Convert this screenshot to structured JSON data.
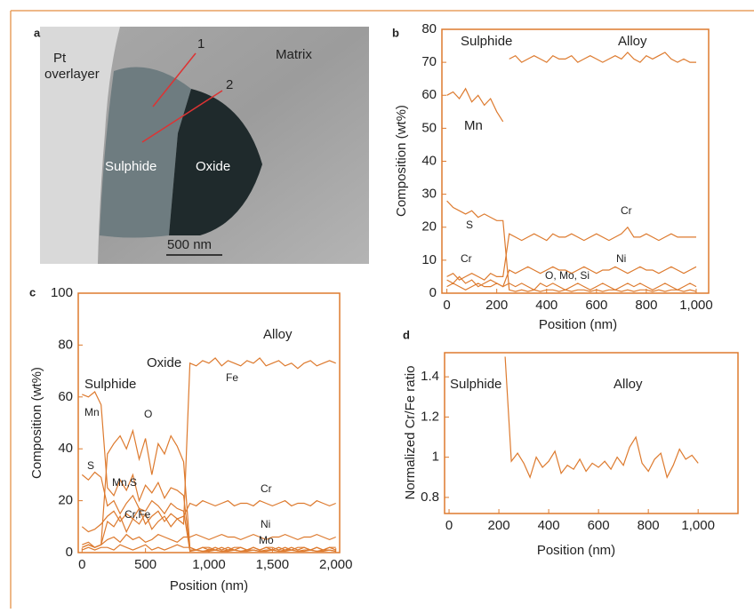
{
  "micrograph": {
    "label": "a",
    "pt": "Pt",
    "overlayer": "overlayer",
    "matrix": "Matrix",
    "line1": "1",
    "line2": "2",
    "sulphide": "Sulphide",
    "oxide": "Oxide",
    "scale": "500 nm"
  },
  "chart_data": [
    {
      "type": "line",
      "label": "b",
      "xlabel": "Position (nm)",
      "ylabel": "Composition (wt%)",
      "xlim": [
        -20,
        1050
      ],
      "ylim": [
        0,
        80
      ],
      "xticks": [
        0,
        200,
        400,
        600,
        800,
        {
          "value": 1000,
          "label": "1,000"
        }
      ],
      "yticks": [
        0,
        10,
        20,
        30,
        40,
        50,
        60,
        70,
        80
      ],
      "annotations": [
        "Sulphide",
        "Alloy",
        "Mn",
        "S",
        "Cr",
        "Cr",
        "Ni",
        "O, Mo, Si"
      ],
      "x": [
        0,
        25,
        50,
        75,
        100,
        125,
        150,
        175,
        200,
        225,
        250,
        275,
        300,
        325,
        350,
        375,
        400,
        425,
        450,
        475,
        500,
        525,
        550,
        575,
        600,
        625,
        650,
        675,
        700,
        725,
        750,
        775,
        800,
        825,
        850,
        875,
        900,
        925,
        950,
        975,
        1000
      ],
      "series": [
        {
          "color": "#dd7a2e",
          "values": [
            60,
            61,
            59,
            62,
            58,
            60,
            57,
            59,
            55,
            52,
            null,
            null,
            null,
            null,
            null,
            null,
            null,
            null,
            null,
            null,
            null,
            null,
            null,
            null,
            null,
            null,
            null,
            null,
            null,
            null,
            null,
            null,
            null,
            null,
            null,
            null,
            null,
            null,
            null,
            null,
            null
          ]
        },
        {
          "color": "#dd7a2e",
          "values": [
            null,
            null,
            null,
            null,
            null,
            null,
            null,
            null,
            null,
            null,
            71,
            72,
            70,
            71,
            72,
            71,
            70,
            72,
            71,
            71,
            72,
            70,
            71,
            72,
            71,
            70,
            71,
            72,
            71,
            73,
            71,
            70,
            72,
            71,
            72,
            73,
            71,
            70,
            71,
            70,
            70
          ]
        },
        {
          "color": "#dd7a2e",
          "values": [
            28,
            26,
            25,
            24,
            25,
            23,
            24,
            23,
            22,
            22,
            1,
            0.5,
            1,
            0.5,
            1,
            0.5,
            1,
            1,
            0.5,
            1,
            0.5,
            1,
            1,
            0.5,
            1,
            0.5,
            1,
            1,
            0.5,
            1,
            0.5,
            1,
            1,
            0.5,
            1,
            0.5,
            1,
            1,
            0.5,
            1,
            0.5
          ]
        },
        {
          "color": "#dd7a2e",
          "values": [
            5,
            6,
            4,
            5,
            6,
            5,
            4,
            6,
            5,
            5,
            18,
            17,
            16,
            17,
            18,
            17,
            16,
            18,
            17,
            17,
            18,
            17,
            16,
            17,
            18,
            17,
            16,
            17,
            18,
            20,
            17,
            17,
            18,
            17,
            16,
            17,
            18,
            17,
            17,
            17,
            17
          ]
        },
        {
          "color": "#dd7a2e",
          "values": [
            2,
            3,
            2,
            1,
            2,
            3,
            2,
            2,
            3,
            2,
            7,
            6,
            7,
            8,
            7,
            6,
            7,
            8,
            7,
            7,
            6,
            7,
            8,
            7,
            6,
            7,
            7,
            8,
            7,
            6,
            7,
            8,
            7,
            7,
            6,
            7,
            8,
            7,
            6,
            7,
            8
          ]
        },
        {
          "color": "#dd7a2e",
          "values": [
            4,
            3,
            5,
            3,
            4,
            2,
            3,
            4,
            3,
            2,
            3,
            2,
            3,
            2,
            1,
            3,
            2,
            3,
            2,
            1,
            2,
            3,
            2,
            1,
            2,
            3,
            2,
            1,
            2,
            3,
            2,
            3,
            2,
            1,
            2,
            3,
            2,
            1,
            2,
            3,
            2
          ]
        }
      ]
    },
    {
      "type": "line",
      "label": "c",
      "xlabel": "Position (nm)",
      "ylabel": "Composition (wt%)",
      "xlim": [
        -30,
        2030
      ],
      "ylim": [
        0,
        100
      ],
      "xticks": [
        0,
        500,
        {
          "value": 1000,
          "label": "1,000"
        },
        {
          "value": 1500,
          "label": "1,500"
        },
        {
          "value": 2000,
          "label": "2,000"
        }
      ],
      "yticks": [
        0,
        20,
        40,
        60,
        80,
        100
      ],
      "annotations": [
        "Sulphide",
        "Oxide",
        "Alloy",
        "Mn",
        "S",
        "O",
        "Mn,S",
        "Cr,Fe",
        "Fe",
        "Cr",
        "Ni",
        "Mo"
      ],
      "x": [
        0,
        50,
        100,
        150,
        200,
        250,
        300,
        350,
        400,
        450,
        500,
        550,
        600,
        650,
        700,
        750,
        800,
        850,
        900,
        950,
        1000,
        1050,
        1100,
        1150,
        1200,
        1250,
        1300,
        1350,
        1400,
        1450,
        1500,
        1550,
        1600,
        1650,
        1700,
        1750,
        1800,
        1850,
        1900,
        1950,
        2000
      ],
      "series": [
        {
          "color": "#dd7a2e",
          "values": [
            2,
            3,
            2,
            3,
            12,
            10,
            14,
            8,
            13,
            11,
            15,
            9,
            12,
            14,
            10,
            13,
            11,
            73,
            72,
            74,
            73,
            75,
            72,
            74,
            73,
            72,
            74,
            73,
            75,
            72,
            73,
            74,
            72,
            73,
            71,
            73,
            74,
            72,
            73,
            74,
            73
          ]
        },
        {
          "color": "#dd7a2e",
          "values": [
            61,
            60,
            62,
            57,
            25,
            22,
            28,
            24,
            30,
            20,
            26,
            23,
            27,
            21,
            25,
            24,
            22,
            1,
            1,
            0.5,
            1,
            1,
            0.5,
            1,
            1,
            0.5,
            1,
            1,
            0.5,
            1,
            1,
            0.5,
            1,
            1,
            0.5,
            1,
            1,
            0.5,
            1,
            1,
            0.5
          ]
        },
        {
          "color": "#dd7a2e",
          "values": [
            30,
            28,
            31,
            29,
            18,
            20,
            15,
            19,
            22,
            17,
            16,
            20,
            18,
            15,
            19,
            17,
            16,
            0.5,
            1,
            0.5,
            0.5,
            1,
            0.5,
            0.5,
            1,
            0.5,
            0.5,
            1,
            0.5,
            0.5,
            1,
            0.5,
            0.5,
            1,
            0.5,
            0.5,
            1,
            0.5,
            0.5,
            1,
            0.5
          ]
        },
        {
          "color": "#dd7a2e",
          "values": [
            3,
            4,
            2,
            3,
            38,
            42,
            45,
            40,
            47,
            36,
            44,
            30,
            42,
            38,
            45,
            41,
            35,
            2,
            1,
            2,
            1,
            2,
            1,
            2,
            1,
            2,
            1,
            2,
            1,
            2,
            1,
            2,
            1,
            2,
            1,
            2,
            1,
            2,
            1,
            2,
            1
          ]
        },
        {
          "color": "#dd7a2e",
          "values": [
            10,
            8,
            9,
            11,
            14,
            16,
            12,
            15,
            13,
            17,
            11,
            14,
            16,
            12,
            15,
            13,
            14,
            19,
            18,
            20,
            19,
            18,
            19,
            20,
            18,
            19,
            19,
            18,
            20,
            19,
            18,
            19,
            20,
            18,
            19,
            19,
            18,
            20,
            19,
            18,
            19
          ]
        },
        {
          "color": "#dd7a2e",
          "values": [
            2,
            3,
            2,
            3,
            5,
            6,
            4,
            7,
            5,
            6,
            4,
            5,
            7,
            6,
            5,
            4,
            6,
            6,
            7,
            6,
            5,
            6,
            7,
            6,
            6,
            5,
            6,
            7,
            6,
            5,
            6,
            6,
            7,
            6,
            5,
            6,
            6,
            7,
            6,
            5,
            6
          ]
        },
        {
          "color": "#dd7a2e",
          "values": [
            1,
            2,
            1,
            2,
            2,
            1,
            3,
            2,
            1,
            2,
            3,
            1,
            2,
            1,
            2,
            3,
            2,
            2,
            1,
            2,
            2,
            1,
            2,
            1,
            2,
            2,
            1,
            2,
            1,
            2,
            2,
            1,
            2,
            1,
            2,
            2,
            1,
            2,
            1,
            2,
            2
          ]
        }
      ]
    },
    {
      "type": "line",
      "label": "d",
      "xlabel": "Position (nm)",
      "ylabel": "Normalized Cr/Fe ratio",
      "xlim": [
        -18,
        1160
      ],
      "ylim": [
        0.72,
        1.52
      ],
      "xticks": [
        0,
        200,
        400,
        600,
        800,
        {
          "value": 1000,
          "label": "1,000"
        }
      ],
      "yticks": [
        0.8,
        1,
        1.2,
        1.4
      ],
      "annotations": [
        "Sulphide",
        "Alloy"
      ],
      "x": [
        225,
        250,
        275,
        300,
        325,
        350,
        375,
        400,
        425,
        450,
        475,
        500,
        525,
        550,
        575,
        600,
        625,
        650,
        675,
        700,
        725,
        750,
        775,
        800,
        825,
        850,
        875,
        900,
        925,
        950,
        975,
        1000
      ],
      "series": [
        {
          "color": "#dd7a2e",
          "values": [
            1.5,
            0.98,
            1.02,
            0.97,
            0.9,
            1.0,
            0.95,
            0.98,
            1.03,
            0.92,
            0.96,
            0.94,
            0.99,
            0.93,
            0.97,
            0.95,
            0.98,
            0.94,
            1.0,
            0.96,
            1.05,
            1.1,
            0.97,
            0.93,
            0.99,
            1.02,
            0.9,
            0.96,
            1.04,
            0.99,
            1.01,
            0.97
          ]
        }
      ]
    }
  ]
}
